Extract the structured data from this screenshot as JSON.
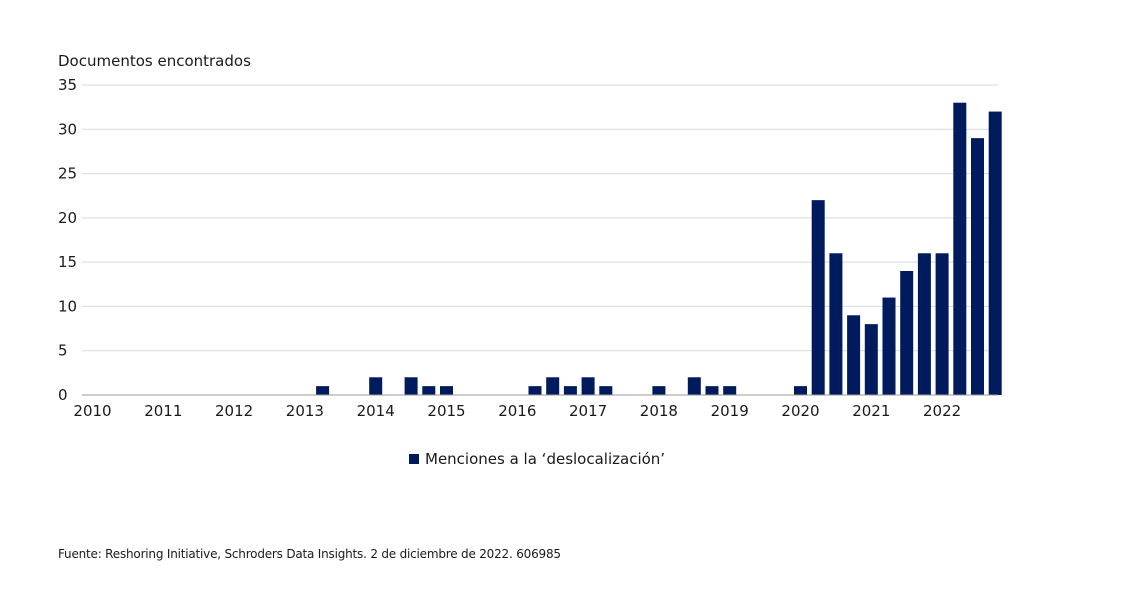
{
  "chart_data": {
    "type": "bar",
    "ylabel": "Documentos encontrados",
    "ylim": [
      0,
      35
    ],
    "yticks": [
      0,
      5,
      10,
      15,
      20,
      25,
      30,
      35
    ],
    "x_tick_labels": [
      "2010",
      "2011",
      "2012",
      "2013",
      "2014",
      "2015",
      "2016",
      "2017",
      "2018",
      "2019",
      "2020",
      "2021",
      "2022"
    ],
    "grid": true,
    "legend_position": "bottom-center",
    "series": [
      {
        "name": "Menciones a la ‘deslocalización’",
        "color": "#001a5e",
        "x": [
          "2013-Q2",
          "2014-Q1",
          "2014-Q3",
          "2014-Q4",
          "2015-Q1",
          "2016-Q2",
          "2016-Q3",
          "2016-Q4",
          "2017-Q1",
          "2017-Q2",
          "2018-Q1",
          "2018-Q3",
          "2018-Q4",
          "2019-Q1",
          "2020-Q1",
          "2020-Q2",
          "2020-Q3",
          "2020-Q4",
          "2021-Q1",
          "2021-Q2",
          "2021-Q3",
          "2021-Q4",
          "2022-Q1",
          "2022-Q2",
          "2022-Q3",
          "2022-Q4"
        ],
        "values": [
          1,
          2,
          2,
          1,
          1,
          1,
          2,
          1,
          2,
          1,
          1,
          2,
          1,
          1,
          1,
          22,
          16,
          9,
          8,
          11,
          14,
          16,
          16,
          33,
          29,
          32
        ]
      }
    ]
  },
  "source": "Fuente: Reshoring Initiative, Schroders Data Insights. 2 de diciembre de 2022. 606985"
}
